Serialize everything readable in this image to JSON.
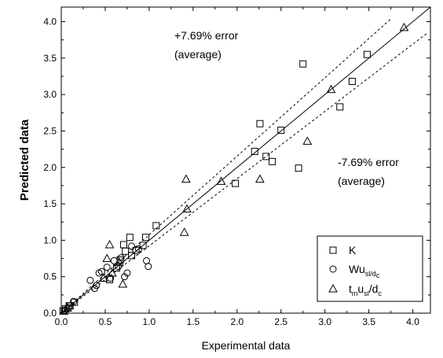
{
  "chart_data": {
    "type": "scatter",
    "xlabel": "Experimental data",
    "ylabel": "Predicted data",
    "xlim": [
      0.0,
      4.2
    ],
    "ylim": [
      0.0,
      4.2
    ],
    "x_ticks": [
      "0.0",
      "0.5",
      "1.0",
      "1.5",
      "2.0",
      "2.5",
      "3.0",
      "3.5",
      "4.0"
    ],
    "y_ticks": [
      "0.0",
      "0.5",
      "1.0",
      "1.5",
      "2.0",
      "2.5",
      "3.0",
      "3.5",
      "4.0"
    ],
    "grid": false,
    "legend_position": "bottom-right",
    "reference_lines": [
      {
        "style": "solid",
        "slope": 1.0
      },
      {
        "style": "dashed",
        "slope": 1.0769
      },
      {
        "style": "dashed",
        "slope": 0.9231
      }
    ],
    "annotations": [
      {
        "lines": [
          "+7.69% error",
          "(average)"
        ]
      },
      {
        "lines": [
          "-7.69% error",
          "(average)"
        ]
      }
    ],
    "series": [
      {
        "name": "K",
        "name_main": "K",
        "name_sub": "",
        "marker": "square",
        "x": [
          0.02,
          0.05,
          0.09,
          0.1,
          0.15,
          0.55,
          0.63,
          0.67,
          0.71,
          0.73,
          0.78,
          0.8,
          0.85,
          0.93,
          0.96,
          1.08,
          1.98,
          2.2,
          2.26,
          2.33,
          2.4,
          2.5,
          2.7,
          2.75,
          3.17,
          3.31,
          3.48
        ],
        "y": [
          0.03,
          0.06,
          0.1,
          0.1,
          0.15,
          0.46,
          0.62,
          0.73,
          0.94,
          0.85,
          1.04,
          0.79,
          0.86,
          0.93,
          1.04,
          1.2,
          1.78,
          2.22,
          2.6,
          2.15,
          2.08,
          2.51,
          1.99,
          3.42,
          2.83,
          3.18,
          3.55
        ]
      },
      {
        "name": "Wusl/dc",
        "name_main": "Wu",
        "name_sub": "sl/d",
        "name_sub_tail": "c",
        "marker": "circle",
        "x": [
          0.04,
          0.08,
          0.14,
          0.33,
          0.38,
          0.4,
          0.43,
          0.46,
          0.52,
          0.56,
          0.6,
          0.65,
          0.68,
          0.72,
          0.75,
          0.8,
          0.88,
          0.97,
          0.99
        ],
        "y": [
          0.04,
          0.08,
          0.16,
          0.45,
          0.34,
          0.38,
          0.55,
          0.57,
          0.63,
          0.48,
          0.72,
          0.64,
          0.76,
          0.5,
          0.55,
          0.92,
          0.88,
          0.72,
          0.64
        ]
      },
      {
        "name": "tmusl/dc",
        "name_main": "t",
        "name_sub": "m",
        "name_mid": "u",
        "name_sub2": "sl",
        "name_tail": "/d",
        "name_sub3": "c",
        "marker": "triangle",
        "x": [
          0.03,
          0.07,
          0.48,
          0.52,
          0.55,
          0.58,
          0.66,
          0.7,
          1.4,
          1.42,
          1.43,
          1.82,
          2.26,
          2.8,
          3.07,
          3.9
        ],
        "y": [
          0.03,
          0.07,
          0.48,
          0.75,
          0.94,
          0.55,
          0.7,
          0.4,
          1.11,
          1.84,
          1.43,
          1.81,
          1.84,
          2.36,
          3.07,
          3.92
        ]
      }
    ]
  }
}
